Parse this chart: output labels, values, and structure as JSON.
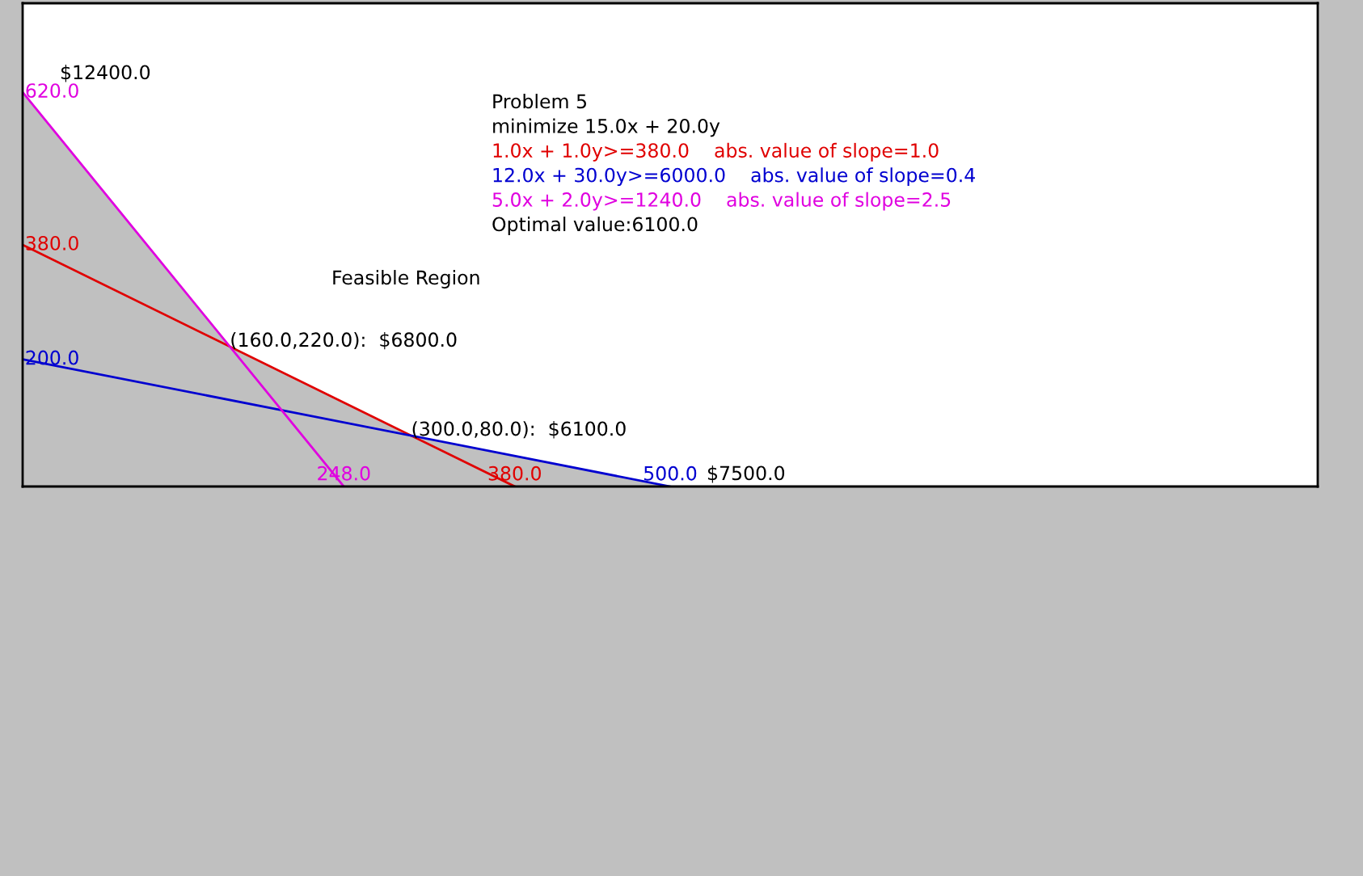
{
  "chart_data": {
    "type": "line",
    "title": "Problem 5",
    "subtitle": "minimize 15.0x + 20.0y",
    "xlim": [
      0,
      1000
    ],
    "ylim": [
      0,
      760
    ],
    "xticks": [
      {
        "value": 248,
        "label": "248.0"
      },
      {
        "value": 380,
        "label": "380.0"
      },
      {
        "value": 500,
        "label": "500.0"
      }
    ],
    "yticks": [
      {
        "value": 620,
        "label": "620.0"
      },
      {
        "value": 380,
        "label": "380.0"
      },
      {
        "value": 200,
        "label": "200.0"
      }
    ],
    "series": [
      {
        "type": "area",
        "color": "#c0c0c0",
        "x": [
          0,
          160,
          300,
          500
        ],
        "values": [
          620,
          220,
          80,
          0
        ]
      },
      {
        "name": "1.0x + 1.0y>=380.0    abs. value of slope=1.0",
        "color": "#e00000",
        "x": [
          0,
          380
        ],
        "values": [
          380,
          0
        ]
      },
      {
        "name": "12.0x + 30.0y>=6000.0    abs. value of slope=0.4",
        "color": "#0000d0",
        "x": [
          0,
          500
        ],
        "values": [
          200,
          0
        ]
      },
      {
        "name": "5.0x + 2.0y>=1240.0    abs. value of slope=2.5",
        "color": "#e000e0",
        "x": [
          0,
          248
        ],
        "values": [
          620,
          0
        ]
      }
    ],
    "annotations": [
      "Optimal value:6100.0",
      "Feasible Region",
      {
        "text": "(160.0,220.0):  $6800.0",
        "x": 160,
        "y": 220
      },
      {
        "text": "(300.0,80.0):  $6100.0",
        "x": 300,
        "y": 80
      },
      "$12400.0",
      "$7500.0"
    ]
  }
}
